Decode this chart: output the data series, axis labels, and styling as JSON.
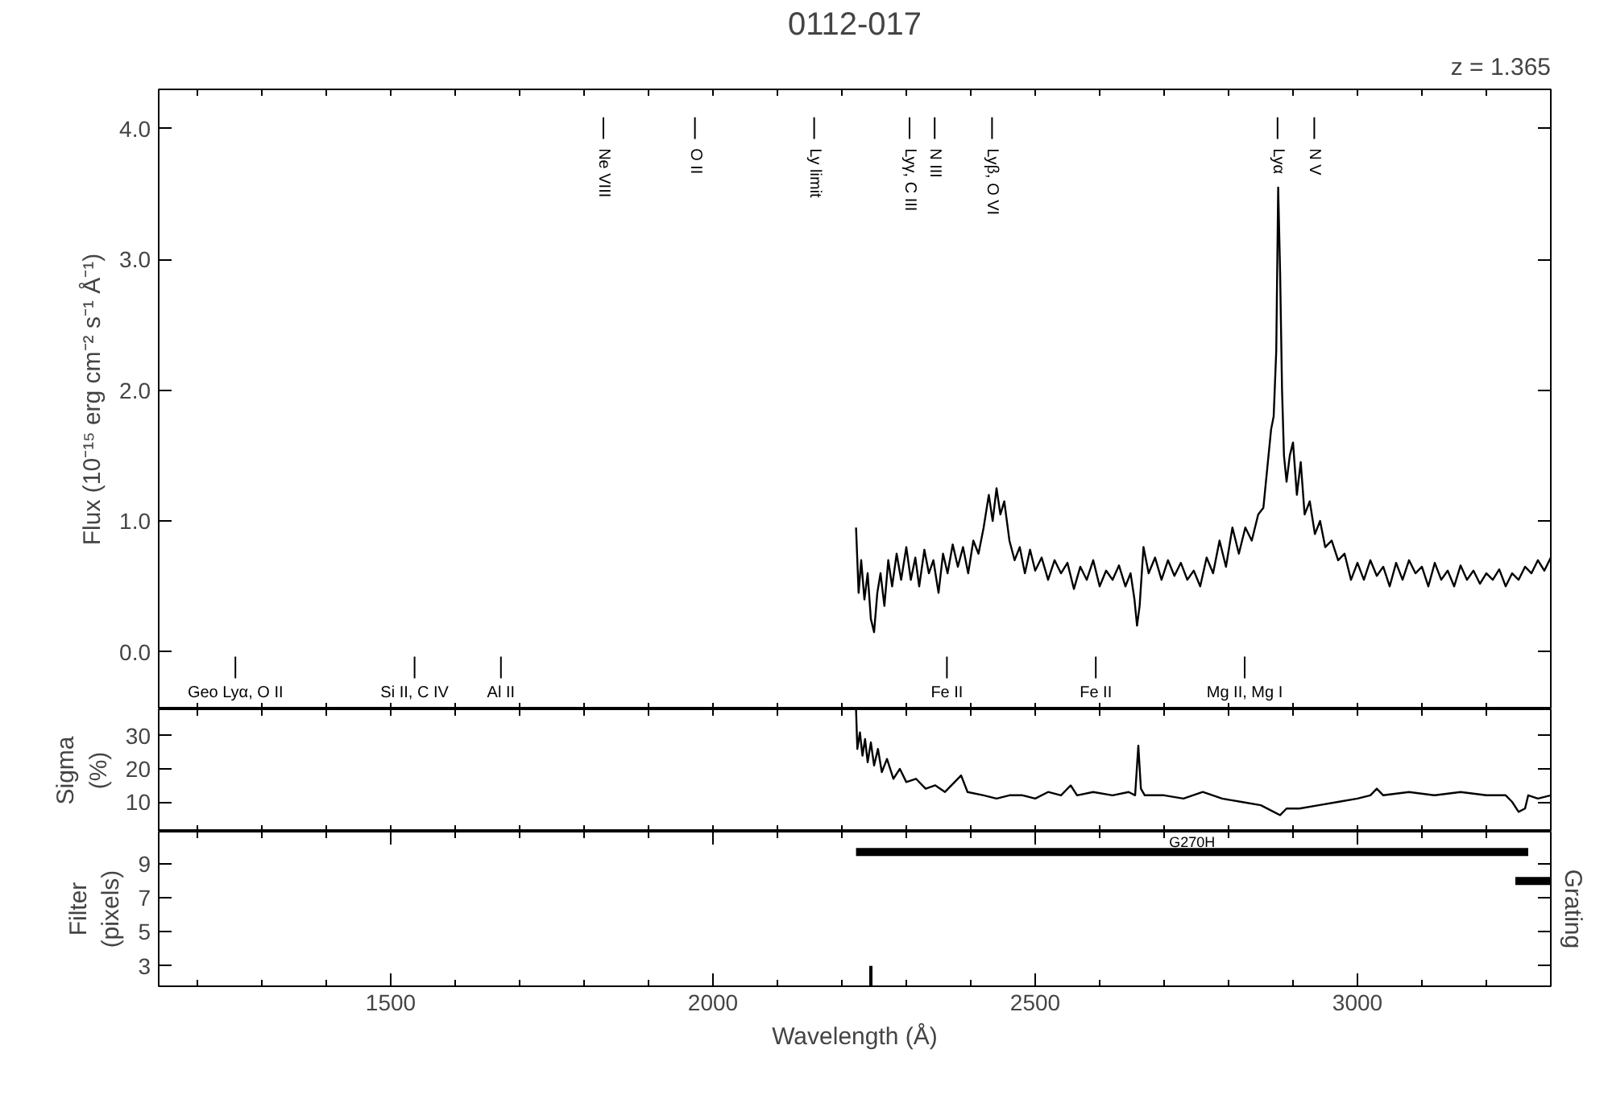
{
  "chart_data": [
    {
      "type": "line",
      "title": "0112-017",
      "subtitle": "z = 1.365",
      "ylabel": "Flux (10⁻¹⁵ erg cm⁻² s⁻¹ Å⁻¹)",
      "xlim": [
        1140,
        3300
      ],
      "xticks": [
        {
          "value": 1200,
          "label": null
        },
        {
          "value": 1300,
          "label": null
        },
        {
          "value": 1400,
          "label": null
        },
        {
          "value": 1500,
          "label": null
        },
        {
          "value": 1600,
          "label": null
        },
        {
          "value": 1700,
          "label": null
        },
        {
          "value": 1800,
          "label": null
        },
        {
          "value": 1900,
          "label": null
        },
        {
          "value": 2000,
          "label": null
        },
        {
          "value": 2100,
          "label": null
        },
        {
          "value": 2200,
          "label": null
        },
        {
          "value": 2300,
          "label": null
        },
        {
          "value": 2400,
          "label": null
        },
        {
          "value": 2500,
          "label": null
        },
        {
          "value": 2600,
          "label": null
        },
        {
          "value": 2700,
          "label": null
        },
        {
          "value": 2800,
          "label": null
        },
        {
          "value": 2900,
          "label": null
        },
        {
          "value": 3000,
          "label": null
        },
        {
          "value": 3100,
          "label": null
        },
        {
          "value": 3200,
          "label": null
        }
      ],
      "ylim": [
        -0.44,
        4.3
      ],
      "yticks": [
        {
          "value": 0,
          "label": "0.0"
        },
        {
          "value": 1,
          "label": "1.0"
        },
        {
          "value": 2,
          "label": "2.0"
        },
        {
          "value": 3,
          "label": "3.0"
        },
        {
          "value": 4,
          "label": "4.0"
        }
      ],
      "tick_labels": "y",
      "grid": false,
      "series": [
        {
          "color": "#000000",
          "x": [
            2222,
            2226,
            2230,
            2235,
            2240,
            2245,
            2250,
            2255,
            2260,
            2266,
            2272,
            2278,
            2285,
            2292,
            2300,
            2307,
            2314,
            2320,
            2328,
            2335,
            2342,
            2350,
            2357,
            2364,
            2372,
            2380,
            2388,
            2396,
            2404,
            2412,
            2420,
            2428,
            2434,
            2440,
            2446,
            2452,
            2460,
            2468,
            2476,
            2484,
            2492,
            2500,
            2510,
            2520,
            2530,
            2540,
            2550,
            2560,
            2570,
            2580,
            2590,
            2600,
            2610,
            2620,
            2630,
            2640,
            2648,
            2654,
            2658,
            2662,
            2668,
            2676,
            2686,
            2696,
            2706,
            2716,
            2726,
            2736,
            2746,
            2756,
            2766,
            2776,
            2786,
            2796,
            2806,
            2816,
            2826,
            2836,
            2846,
            2854,
            2860,
            2866,
            2870,
            2874,
            2877,
            2880,
            2883,
            2886,
            2890,
            2895,
            2900,
            2906,
            2912,
            2918,
            2926,
            2934,
            2942,
            2950,
            2960,
            2970,
            2980,
            2990,
            3000,
            3010,
            3020,
            3030,
            3040,
            3050,
            3060,
            3070,
            3080,
            3090,
            3100,
            3110,
            3120,
            3130,
            3140,
            3150,
            3160,
            3170,
            3180,
            3190,
            3200,
            3210,
            3220,
            3230,
            3240,
            3250,
            3260,
            3270,
            3280,
            3290,
            3300
          ],
          "values": [
            0.95,
            0.45,
            0.7,
            0.4,
            0.6,
            0.25,
            0.15,
            0.45,
            0.6,
            0.35,
            0.7,
            0.5,
            0.75,
            0.55,
            0.8,
            0.55,
            0.72,
            0.5,
            0.78,
            0.6,
            0.7,
            0.45,
            0.75,
            0.6,
            0.82,
            0.65,
            0.8,
            0.6,
            0.85,
            0.75,
            0.95,
            1.2,
            1.0,
            1.25,
            1.05,
            1.15,
            0.85,
            0.7,
            0.8,
            0.6,
            0.78,
            0.62,
            0.72,
            0.55,
            0.7,
            0.6,
            0.68,
            0.48,
            0.65,
            0.55,
            0.7,
            0.5,
            0.62,
            0.55,
            0.66,
            0.5,
            0.6,
            0.4,
            0.2,
            0.35,
            0.8,
            0.6,
            0.72,
            0.55,
            0.7,
            0.58,
            0.68,
            0.55,
            0.62,
            0.5,
            0.72,
            0.6,
            0.85,
            0.65,
            0.95,
            0.75,
            0.95,
            0.85,
            1.05,
            1.1,
            1.4,
            1.7,
            1.8,
            2.3,
            3.55,
            2.9,
            2.0,
            1.5,
            1.3,
            1.5,
            1.6,
            1.2,
            1.45,
            1.05,
            1.15,
            0.9,
            1.0,
            0.8,
            0.85,
            0.7,
            0.75,
            0.55,
            0.68,
            0.55,
            0.7,
            0.58,
            0.65,
            0.5,
            0.68,
            0.55,
            0.7,
            0.6,
            0.65,
            0.5,
            0.68,
            0.55,
            0.62,
            0.5,
            0.66,
            0.55,
            0.62,
            0.52,
            0.6,
            0.55,
            0.63,
            0.5,
            0.6,
            0.55,
            0.65,
            0.6,
            0.7,
            0.62,
            0.72
          ]
        }
      ],
      "ref_lines": [
        {
          "axis": "x",
          "value": 1830,
          "label": "Ne VIII"
        },
        {
          "axis": "x",
          "value": 1972,
          "label": "O II"
        },
        {
          "axis": "x",
          "value": 2157,
          "label": "Ly limit"
        },
        {
          "axis": "x",
          "value": 2305,
          "label": "Lyγ, C III"
        },
        {
          "axis": "x",
          "value": 2344,
          "label": "N III"
        },
        {
          "axis": "x",
          "value": 2433,
          "label": "Lyβ, O VI"
        },
        {
          "axis": "x",
          "value": 2876,
          "label": "Lyα"
        },
        {
          "axis": "x",
          "value": 2933,
          "label": "N V"
        },
        {
          "axis": "x",
          "value": 1259,
          "label": "Geo Lyα, O II"
        },
        {
          "axis": "x",
          "value": 1537,
          "label": "Si II, C IV"
        },
        {
          "axis": "x",
          "value": 1671,
          "label": "Al II"
        },
        {
          "axis": "x",
          "value": 2363,
          "label": "Fe II"
        },
        {
          "axis": "x",
          "value": 2594,
          "label": "Fe II"
        },
        {
          "axis": "x",
          "value": 2825,
          "label": "Mg II, Mg I"
        }
      ]
    },
    {
      "type": "line",
      "ylabel": "Sigma\n(%)",
      "xlim": [
        1140,
        3300
      ],
      "xticks": [
        {
          "value": 1200,
          "label": null
        },
        {
          "value": 1300,
          "label": null
        },
        {
          "value": 1400,
          "label": null
        },
        {
          "value": 1500,
          "label": null
        },
        {
          "value": 1600,
          "label": null
        },
        {
          "value": 1700,
          "label": null
        },
        {
          "value": 1800,
          "label": null
        },
        {
          "value": 1900,
          "label": null
        },
        {
          "value": 2000,
          "label": null
        },
        {
          "value": 2100,
          "label": null
        },
        {
          "value": 2200,
          "label": null
        },
        {
          "value": 2300,
          "label": null
        },
        {
          "value": 2400,
          "label": null
        },
        {
          "value": 2500,
          "label": null
        },
        {
          "value": 2600,
          "label": null
        },
        {
          "value": 2700,
          "label": null
        },
        {
          "value": 2800,
          "label": null
        },
        {
          "value": 2900,
          "label": null
        },
        {
          "value": 3000,
          "label": null
        },
        {
          "value": 3100,
          "label": null
        },
        {
          "value": 3200,
          "label": null
        }
      ],
      "ylim": [
        1,
        38
      ],
      "yticks": [
        10,
        20,
        30
      ],
      "tick_labels": "y",
      "grid": false,
      "series": [
        {
          "color": "#000000",
          "x": [
            2222,
            2224,
            2228,
            2232,
            2236,
            2240,
            2245,
            2250,
            2256,
            2262,
            2270,
            2280,
            2290,
            2300,
            2315,
            2330,
            2345,
            2360,
            2375,
            2385,
            2395,
            2420,
            2440,
            2460,
            2480,
            2500,
            2520,
            2540,
            2555,
            2565,
            2590,
            2620,
            2645,
            2655,
            2660,
            2664,
            2670,
            2700,
            2730,
            2760,
            2790,
            2820,
            2850,
            2870,
            2880,
            2890,
            2910,
            2940,
            2970,
            3000,
            3020,
            3030,
            3040,
            3080,
            3120,
            3160,
            3200,
            3230,
            3240,
            3250,
            3260,
            3265,
            3280,
            3300
          ],
          "values": [
            38,
            26,
            31,
            24,
            29,
            22,
            28,
            21,
            26,
            19,
            23,
            17,
            20,
            16,
            17,
            14,
            15,
            13,
            16,
            18,
            13,
            12,
            11,
            12,
            12,
            11,
            13,
            12,
            15,
            12,
            13,
            12,
            13,
            12,
            27,
            14,
            12,
            12,
            11,
            13,
            11,
            10,
            9,
            7,
            6,
            8,
            8,
            9,
            10,
            11,
            12,
            14,
            12,
            13,
            12,
            13,
            12,
            12,
            10,
            7,
            8,
            12,
            11,
            12
          ]
        }
      ]
    },
    {
      "type": "line",
      "ylabel": "Filter\n(pixels)",
      "y2label": "Grating",
      "xlabel": "Wavelength (Å)",
      "xlim": [
        1140,
        3300
      ],
      "xticks": [
        {
          "value": 1200,
          "label": null
        },
        {
          "value": 1300,
          "label": null
        },
        {
          "value": 1400,
          "label": null
        },
        1500,
        {
          "value": 1600,
          "label": null
        },
        {
          "value": 1700,
          "label": null
        },
        {
          "value": 1800,
          "label": null
        },
        {
          "value": 1900,
          "label": null
        },
        2000,
        {
          "value": 2100,
          "label": null
        },
        {
          "value": 2200,
          "label": null
        },
        {
          "value": 2300,
          "label": null
        },
        {
          "value": 2400,
          "label": null
        },
        2500,
        {
          "value": 2600,
          "label": null
        },
        {
          "value": 2700,
          "label": null
        },
        {
          "value": 2800,
          "label": null
        },
        {
          "value": 2900,
          "label": null
        },
        3000,
        {
          "value": 3100,
          "label": null
        },
        {
          "value": 3200,
          "label": null
        }
      ],
      "ylim": [
        1.8,
        10.9
      ],
      "yticks": [
        3,
        5,
        7,
        9
      ],
      "grid": false,
      "series": [
        {
          "name": "G270H",
          "color": "#000000",
          "x": [
            2222,
            3265
          ],
          "values": [
            9.7,
            9.7
          ]
        },
        {
          "color": "#000000",
          "x": [
            3245,
            3300
          ],
          "values": [
            8,
            8
          ]
        },
        {
          "color": "#000000",
          "x": [
            2245,
            2245
          ],
          "values": [
            1.8,
            3
          ]
        }
      ]
    }
  ]
}
